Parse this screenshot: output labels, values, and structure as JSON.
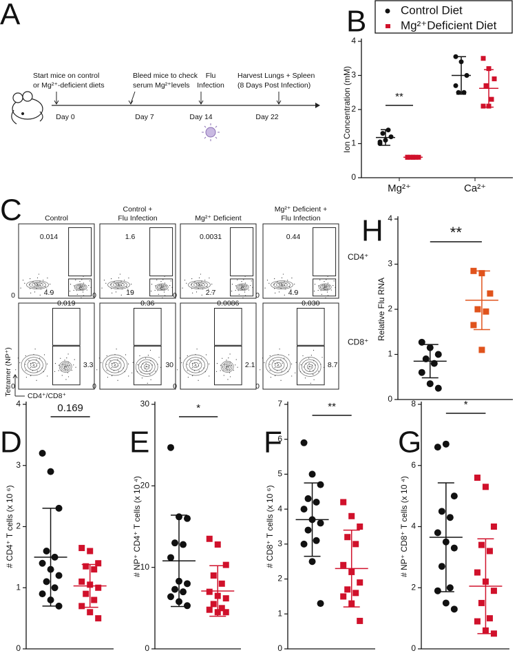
{
  "timeline": {
    "label": "A",
    "events": [
      {
        "lines": [
          "Start mice on control",
          "or Mg²⁺-deficient diets"
        ],
        "day": "Day 0"
      },
      {
        "lines": [
          "Bleed mice to check",
          "serum Mg²⁺levels"
        ],
        "day": "Day 7"
      },
      {
        "lines": [
          "Flu",
          "Infection"
        ],
        "day": "Day 14"
      },
      {
        "lines": [
          "Harvest Lungs + Spleen",
          "(8 Days Post Infection)"
        ],
        "day": "Day 22"
      }
    ]
  },
  "flow": {
    "label": "C",
    "columns": [
      [
        "Control"
      ],
      [
        "Control +",
        "Flu Infection"
      ],
      [
        "Mg²⁺ Deficient"
      ],
      [
        "Mg²⁺ Deficient +",
        "Flu Infection"
      ]
    ],
    "rows": [
      {
        "label": "CD4⁺",
        "upper": [
          "0.014",
          "1.6",
          "0.0031",
          "0.44"
        ],
        "lower": [
          "4.9",
          "19",
          "2.7",
          "4.9"
        ]
      },
      {
        "label": "CD8⁺",
        "upper": [
          "0.019",
          "0.36",
          "0.0086",
          "0.030"
        ],
        "lower": [
          "3.3",
          "30",
          "2.1",
          "8.7"
        ]
      }
    ],
    "y_axis": "Tetramer (NP⁺)",
    "x_axis": "CD4⁺/CD8⁺",
    "zero": "0"
  },
  "chart_data": [
    {
      "type": "dotplot",
      "label": "B",
      "y_label": "Ion Concentration (mM)",
      "categories": [
        "Mg²⁺",
        "Ca²⁺"
      ],
      "ylim": [
        0,
        4
      ],
      "yticks": [
        0,
        1,
        2,
        3,
        4
      ],
      "annotation": "**",
      "series": [
        {
          "name": "Control Diet",
          "color": "#111111",
          "marker": "circle",
          "values": [
            [
              1.0,
              1.1,
              1.2,
              1.3,
              1.4,
              1.05
            ],
            [
              3.55,
              3.4,
              3.0,
              2.5,
              2.5,
              2.7
            ]
          ],
          "mean": [
            1.18,
            3.0
          ],
          "sd": [
            0.23,
            0.55
          ]
        },
        {
          "name": "Mg²⁺Deficient Diet",
          "color": "#d0112b",
          "marker": "square",
          "values": [
            [
              0.6,
              0.6,
              0.6,
              0.6,
              0.6,
              0.6,
              0.6
            ],
            [
              3.5,
              3.2,
              2.9,
              2.7,
              2.3,
              2.1,
              2.1
            ]
          ],
          "mean": [
            0.6,
            2.62
          ],
          "sd": [
            0.02,
            0.55
          ]
        }
      ]
    },
    {
      "type": "dotplot",
      "label": "H",
      "y_label": "Relative Flu  RNA",
      "ylim": [
        0,
        4
      ],
      "yticks": [
        0,
        1,
        2,
        3,
        4
      ],
      "annotation": "**",
      "series": [
        {
          "color": "#111111",
          "marker": "circle",
          "values": [
            1.27,
            1.15,
            1.0,
            0.9,
            0.8,
            0.6,
            0.35,
            0.25
          ],
          "mean": 0.85,
          "sd": 0.37
        },
        {
          "color": "#e0531c",
          "marker": "square",
          "values": [
            2.85,
            2.8,
            2.35,
            2.0,
            1.95,
            1.65,
            1.1
          ],
          "mean": 2.2,
          "sd": 0.65
        }
      ]
    },
    {
      "type": "dotplot",
      "label": "D",
      "y_label": "# CD4⁺ T cells (x 10 ⁶)",
      "ylim": [
        0,
        4
      ],
      "yticks": [
        0,
        1,
        2,
        3,
        4
      ],
      "annotation": "0.169",
      "series": [
        {
          "color": "#111111",
          "marker": "circle",
          "values": [
            3.2,
            2.9,
            2.3,
            1.6,
            1.5,
            1.4,
            1.3,
            1.2,
            1.1,
            1.0,
            0.9,
            0.8,
            0.7
          ],
          "mean": 1.5,
          "sd": 0.8
        },
        {
          "color": "#d0112b",
          "marker": "square",
          "values": [
            1.65,
            1.6,
            1.4,
            1.35,
            1.3,
            1.1,
            1.05,
            1.0,
            0.9,
            0.8,
            0.7,
            0.6,
            0.5
          ],
          "mean": 1.03,
          "sd": 0.35
        }
      ]
    },
    {
      "type": "dotplot",
      "label": "E",
      "y_label": "# NP⁺ CD4⁺ T cells (x 10 ⁴)",
      "ylim": [
        0,
        30
      ],
      "yticks": [
        0,
        10,
        20,
        30
      ],
      "annotation": "*",
      "series": [
        {
          "color": "#111111",
          "marker": "circle",
          "values": [
            24.7,
            16.2,
            16.0,
            13.0,
            12.8,
            11.2,
            8.3,
            8.0,
            7.3,
            7.0,
            6.4,
            5.8,
            5.3
          ],
          "mean": 10.8,
          "sd": 5.6
        },
        {
          "color": "#d0112b",
          "marker": "square",
          "values": [
            13.5,
            12.8,
            10.3,
            9.0,
            8.0,
            7.0,
            6.5,
            6.2,
            5.5,
            5.0,
            4.8,
            4.5,
            4.5
          ],
          "mean": 7.1,
          "sd": 3.1
        }
      ]
    },
    {
      "type": "dotplot",
      "label": "F",
      "y_label": "# CD8⁺ T cells (x 10 ⁶)",
      "ylim": [
        0,
        7
      ],
      "yticks": [
        0,
        1,
        2,
        3,
        4,
        5,
        6,
        7
      ],
      "annotation": "**",
      "series": [
        {
          "color": "#111111",
          "marker": "circle",
          "values": [
            5.9,
            5.0,
            4.7,
            4.3,
            4.2,
            4.0,
            3.7,
            3.6,
            3.4,
            3.1,
            3.0,
            2.5,
            1.3
          ],
          "mean": 3.7,
          "sd": 1.05
        },
        {
          "color": "#d0112b",
          "marker": "square",
          "values": [
            4.2,
            3.8,
            3.5,
            3.2,
            3.0,
            2.4,
            2.2,
            1.9,
            1.7,
            1.6,
            1.5,
            1.3,
            0.8
          ],
          "mean": 2.3,
          "sd": 1.1
        }
      ]
    },
    {
      "type": "dotplot",
      "label": "G",
      "y_label": "# NP⁺ CD8⁺ T cells (x 10 ⁴)",
      "ylim": [
        0,
        8
      ],
      "yticks": [
        0,
        2,
        4,
        6,
        8
      ],
      "annotation": "*",
      "series": [
        {
          "color": "#111111",
          "marker": "circle",
          "values": [
            6.6,
            6.7,
            5.0,
            4.5,
            4.3,
            3.8,
            3.5,
            3.3,
            2.7,
            2.0,
            1.9,
            1.5,
            1.3
          ],
          "mean": 3.65,
          "sd": 1.78
        },
        {
          "color": "#d0112b",
          "marker": "square",
          "values": [
            5.6,
            5.3,
            4.0,
            3.4,
            3.2,
            2.5,
            2.2,
            1.9,
            1.5,
            1.0,
            0.9,
            0.6,
            0.5
          ],
          "mean": 2.05,
          "sd": 1.55
        }
      ]
    }
  ]
}
